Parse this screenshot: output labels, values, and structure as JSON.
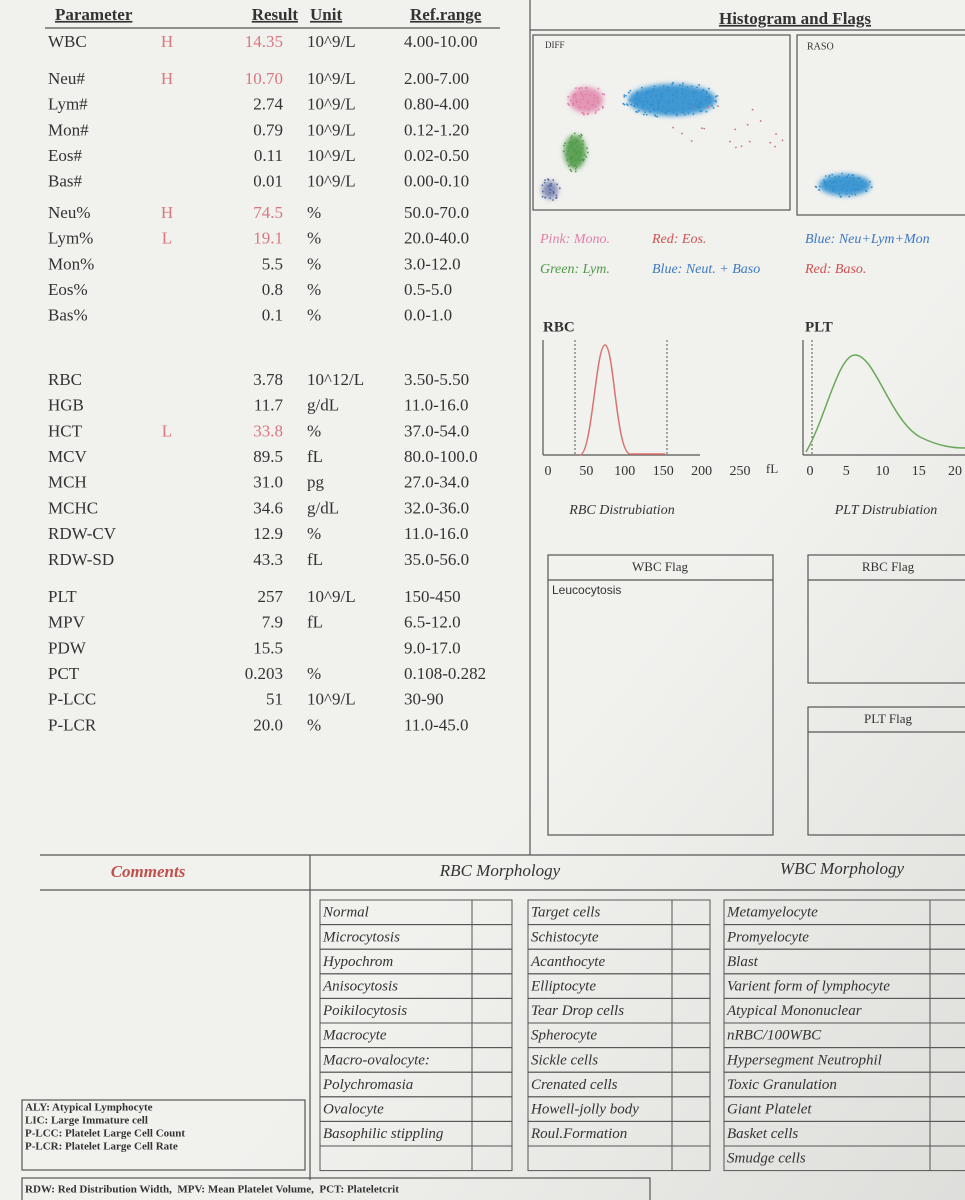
{
  "header": {
    "columns": [
      "Parameter",
      "Result",
      "Unit",
      "Ref.range"
    ],
    "panel_title": "Histogram and Flags"
  },
  "groups": [
    [
      {
        "name": "WBC",
        "flag": "H",
        "result": "14.35",
        "unit": "10^9/L",
        "ref": "4.00-10.00"
      }
    ],
    [
      {
        "name": "Neu#",
        "flag": "H",
        "result": "10.70",
        "unit": "10^9/L",
        "ref": "2.00-7.00"
      },
      {
        "name": "Lym#",
        "result": "2.74",
        "unit": "10^9/L",
        "ref": "0.80-4.00"
      },
      {
        "name": "Mon#",
        "result": "0.79",
        "unit": "10^9/L",
        "ref": "0.12-1.20"
      },
      {
        "name": "Eos#",
        "result": "0.11",
        "unit": "10^9/L",
        "ref": "0.02-0.50"
      },
      {
        "name": "Bas#",
        "result": "0.01",
        "unit": "10^9/L",
        "ref": "0.00-0.10"
      }
    ],
    [
      {
        "name": "Neu%",
        "flag": "H",
        "result": "74.5",
        "unit": "%",
        "ref": "50.0-70.0"
      },
      {
        "name": "Lym%",
        "flag": "L",
        "result": "19.1",
        "unit": "%",
        "ref": "20.0-40.0"
      },
      {
        "name": "Mon%",
        "result": "5.5",
        "unit": "%",
        "ref": "3.0-12.0"
      },
      {
        "name": "Eos%",
        "result": "0.8",
        "unit": "%",
        "ref": "0.5-5.0"
      },
      {
        "name": "Bas%",
        "result": "0.1",
        "unit": "%",
        "ref": "0.0-1.0"
      }
    ],
    [
      {
        "name": "RBC",
        "result": "3.78",
        "unit": "10^12/L",
        "ref": "3.50-5.50"
      },
      {
        "name": "HGB",
        "result": "11.7",
        "unit": "g/dL",
        "ref": "11.0-16.0"
      },
      {
        "name": "HCT",
        "flag": "L",
        "result": "33.8",
        "unit": "%",
        "ref": "37.0-54.0"
      },
      {
        "name": "MCV",
        "result": "89.5",
        "unit": "fL",
        "ref": "80.0-100.0"
      },
      {
        "name": "MCH",
        "result": "31.0",
        "unit": "pg",
        "ref": "27.0-34.0"
      },
      {
        "name": "MCHC",
        "result": "34.6",
        "unit": "g/dL",
        "ref": "32.0-36.0"
      },
      {
        "name": "RDW-CV",
        "result": "12.9",
        "unit": "%",
        "ref": "11.0-16.0"
      },
      {
        "name": "RDW-SD",
        "result": "43.3",
        "unit": "fL",
        "ref": "35.0-56.0"
      }
    ],
    [
      {
        "name": "PLT",
        "result": "257",
        "unit": "10^9/L",
        "ref": "150-450"
      },
      {
        "name": "MPV",
        "result": "7.9",
        "unit": "fL",
        "ref": "6.5-12.0"
      },
      {
        "name": "PDW",
        "result": "15.5",
        "ref": "9.0-17.0"
      },
      {
        "name": "PCT",
        "result": "0.203",
        "unit": "%",
        "ref": "0.108-0.282"
      },
      {
        "name": "P-LCC",
        "result": "51",
        "unit": "10^9/L",
        "ref": "30-90"
      },
      {
        "name": "P-LCR",
        "result": "20.0",
        "unit": "%",
        "ref": "11.0-45.0"
      }
    ]
  ],
  "scatter": {
    "diff_label": "DIFF",
    "baso_label": "RASO",
    "legend": [
      {
        "text": "Pink: Mono.",
        "color": "#e07fa8"
      },
      {
        "text": "Red: Eos.",
        "color": "#d05050"
      },
      {
        "text": "Blue: Neu+Lym+Mon",
        "color": "#3b78c2"
      },
      {
        "text": "Green: Lym.",
        "color": "#4f9a48"
      },
      {
        "text": "Blue: Neut. + Baso",
        "color": "#3b78c2"
      },
      {
        "text": "Red: Baso.",
        "color": "#d05050"
      }
    ]
  },
  "histograms": [
    {
      "title": "RBC",
      "ticks": [
        0,
        50,
        100,
        150,
        200,
        250
      ],
      "unit": "fL",
      "caption": "RBC Distrubiation"
    },
    {
      "title": "PLT",
      "ticks": [
        0,
        5,
        10,
        15,
        20
      ],
      "caption": "PLT Distrubiation"
    }
  ],
  "flags": [
    {
      "title": "WBC Flag",
      "items": [
        "Leucocytosis"
      ]
    },
    {
      "title": "RBC Flag"
    },
    {
      "title": "PLT Flag"
    }
  ],
  "comments_title": "Comments",
  "morphology": {
    "rbc_title": "RBC Morphology",
    "wbc_title": "WBC Morphology",
    "columns": [
      [
        "Normal",
        "Microcytosis",
        "Hypochrom",
        "Anisocytosis",
        "Poikilocytosis",
        "Macrocyte",
        "Macro-ovalocyte:",
        "Polychromasia",
        "Ovalocyte",
        "Basophilic stippling"
      ],
      [
        "Target cells",
        "Schistocyte",
        "Acanthocyte",
        "Elliptocyte",
        "Tear Drop cells",
        "Spherocyte",
        "Sickle cells",
        "Crenated cells",
        "Howell-jolly body",
        "Roul.Formation"
      ],
      [
        "Metamyelocyte",
        "Promyelocyte",
        "Blast",
        "Varient form of lymphocyte",
        "Atypical Mononuclear",
        "nRBC/100WBC",
        "Hypersegment Neutrophil",
        "Toxic Granulation",
        "Giant Platelet",
        "Basket cells",
        "Smudge cells"
      ]
    ]
  },
  "abbreviations": [
    "ALY: Atypical Lymphocyte",
    "LIC: Large Immature cell",
    "P-LCC: Platelet Large Cell Count",
    "P-LCR: Platelet Large Cell Rate"
  ],
  "footnote": "RDW: Red Distribution Width,  MPV: Mean Platelet Volume,  PCT: Plateletcrit"
}
